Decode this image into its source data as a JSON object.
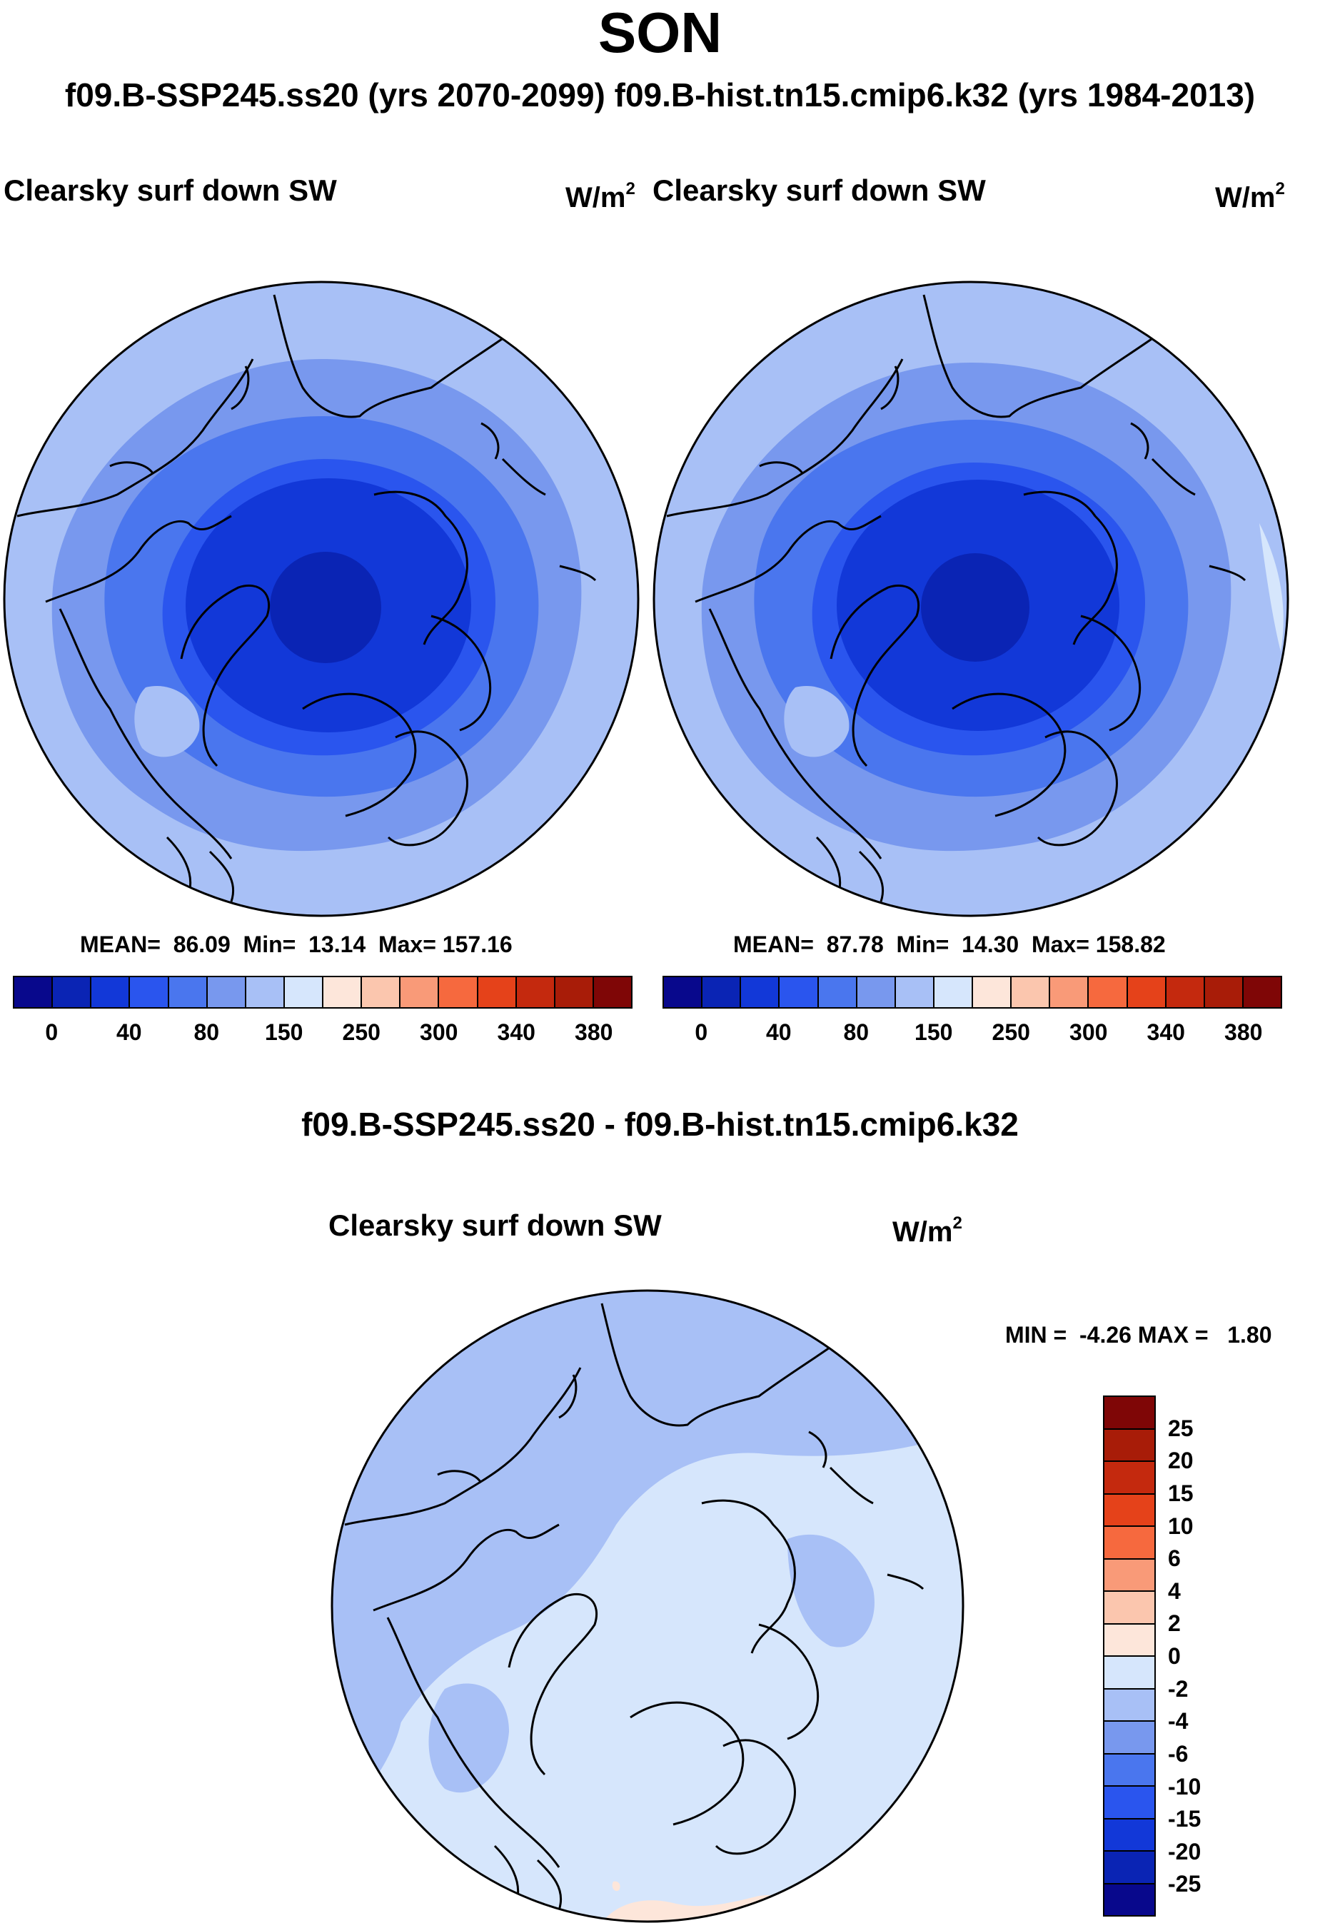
{
  "figure": {
    "season": "SON",
    "header": "f09.B-SSP245.ss20 (yrs 2070-2099)  f09.B-hist.tn15.cmip6.k32 (yrs 1984-2013)"
  },
  "panels": [
    {
      "title": "Clearsky surf down SW",
      "units_base": "W/m",
      "units_exp": "2",
      "stats": "MEAN=  86.09  Min=  13.14  Max= 157.16",
      "mean": 86.09,
      "min": 13.14,
      "max": 157.16
    },
    {
      "title": "Clearsky surf down SW",
      "units_base": "W/m",
      "units_exp": "2",
      "stats": "MEAN=  87.78  Min=  14.30  Max= 158.82",
      "mean": 87.78,
      "min": 14.3,
      "max": 158.82
    }
  ],
  "diff_panel": {
    "heading": "f09.B-SSP245.ss20 - f09.B-hist.tn15.cmip6.k32",
    "title": "Clearsky surf down SW",
    "units_base": "W/m",
    "units_exp": "2",
    "stats": "MIN =  -4.26 MAX =   1.80",
    "min": -4.26,
    "max": 1.8
  },
  "colorbar_main": {
    "colors": [
      "#08088c",
      "#0a24b4",
      "#1238d8",
      "#2a55ee",
      "#4a76ee",
      "#7898ee",
      "#a8c0f6",
      "#d6e6fc",
      "#fde6da",
      "#fbc6ae",
      "#f99a78",
      "#f6693e",
      "#e5421a",
      "#c4290e",
      "#a81c08",
      "#7f0606"
    ],
    "labels": [
      "0",
      "40",
      "80",
      "150",
      "250",
      "300",
      "340",
      "380"
    ]
  },
  "colorbar_diff": {
    "colors": [
      "#7f0606",
      "#a81c08",
      "#c4290e",
      "#e5421a",
      "#f6693e",
      "#f99a78",
      "#fbc6ae",
      "#fde6da",
      "#d6e6fc",
      "#a8c0f6",
      "#7898ee",
      "#4a76ee",
      "#2a55ee",
      "#1238d8",
      "#0a24b4",
      "#08088c"
    ],
    "labels": [
      "25",
      "20",
      "15",
      "10",
      "6",
      "4",
      "2",
      "0",
      "-2",
      "-4",
      "-6",
      "-10",
      "-15",
      "-20",
      "-25"
    ]
  },
  "map_colors": {
    "outer": "#a8c0f6",
    "ring2": "#7898ee",
    "ring3": "#4a76ee",
    "ring4": "#2a55ee",
    "ring5": "#1238d8",
    "center": "#0a24b4",
    "diff_base": "#d6e6fc",
    "diff_neg": "#a8c0f6",
    "diff_neg2": "#7898ee",
    "diff_pos": "#fde6da",
    "coast": "#000000"
  }
}
